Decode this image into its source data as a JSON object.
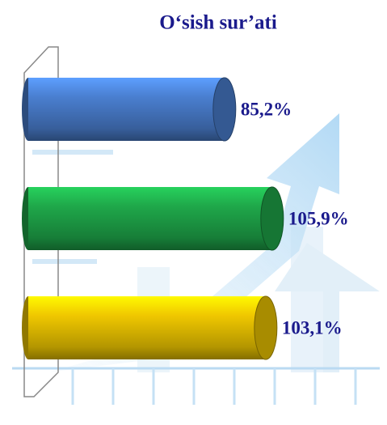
{
  "chart_data": {
    "type": "bar",
    "orientation": "horizontal",
    "title": "O‘sish sur’ati",
    "categories": [
      null,
      null,
      null
    ],
    "values": [
      85.2,
      105.9,
      103.1
    ],
    "value_labels": [
      "85,2%",
      "105,9%",
      "103,1%"
    ],
    "colors": [
      "#4a7fd0",
      "#1fa84a",
      "#f0c800"
    ]
  }
}
